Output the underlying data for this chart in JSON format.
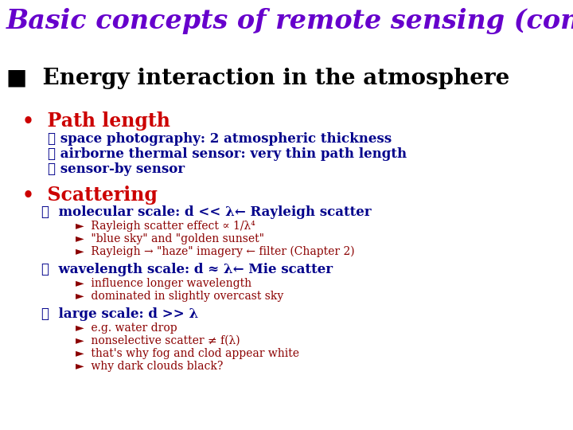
{
  "title": "Basic concepts of remote sensing (cont.)",
  "title_color": "#6600cc",
  "title_fontsize": 24,
  "bg_color": "#ffffff",
  "section_heading": "■  Energy interaction in the atmosphere",
  "section_heading_color": "#000000",
  "section_heading_fontsize": 20,
  "bullet1_text": "•  Path length",
  "bullet1_color": "#cc0000",
  "bullet1_fontsize": 17,
  "sub1": [
    "❖ space photography: 2 atmospheric thickness",
    "❖ airborne thermal sensor: very thin path length",
    "❖ sensor-by sensor"
  ],
  "sub1_color": "#00008B",
  "sub1_fontsize": 12,
  "bullet2_text": "•  Scattering",
  "bullet2_color": "#cc0000",
  "bullet2_fontsize": 17,
  "sub2_items": [
    {
      "label": "❖  molecular scale: d << λ← Rayleigh scatter",
      "color": "#00008B",
      "fontsize": 12,
      "subitems": [
        "Rayleigh scatter effect ∝ 1/λ⁴",
        "\"blue sky\" and \"golden sunset\"",
        "Rayleigh → \"haze\" imagery ← filter (Chapter 2)"
      ]
    },
    {
      "label": "❖  wavelength scale: d ≈ λ← Mie scatter",
      "color": "#00008B",
      "fontsize": 12,
      "subitems": [
        "influence longer wavelength",
        "dominated in slightly overcast sky"
      ]
    },
    {
      "label": "❖  large scale: d >> λ",
      "color": "#00008B",
      "fontsize": 12,
      "subitems": [
        "e.g. water drop",
        "nonselective scatter ≠ f(λ)",
        "that's why fog and clod appear white",
        "why dark clouds black?"
      ]
    }
  ],
  "subitem_color": "#8B0000",
  "subitem_fontsize": 10
}
